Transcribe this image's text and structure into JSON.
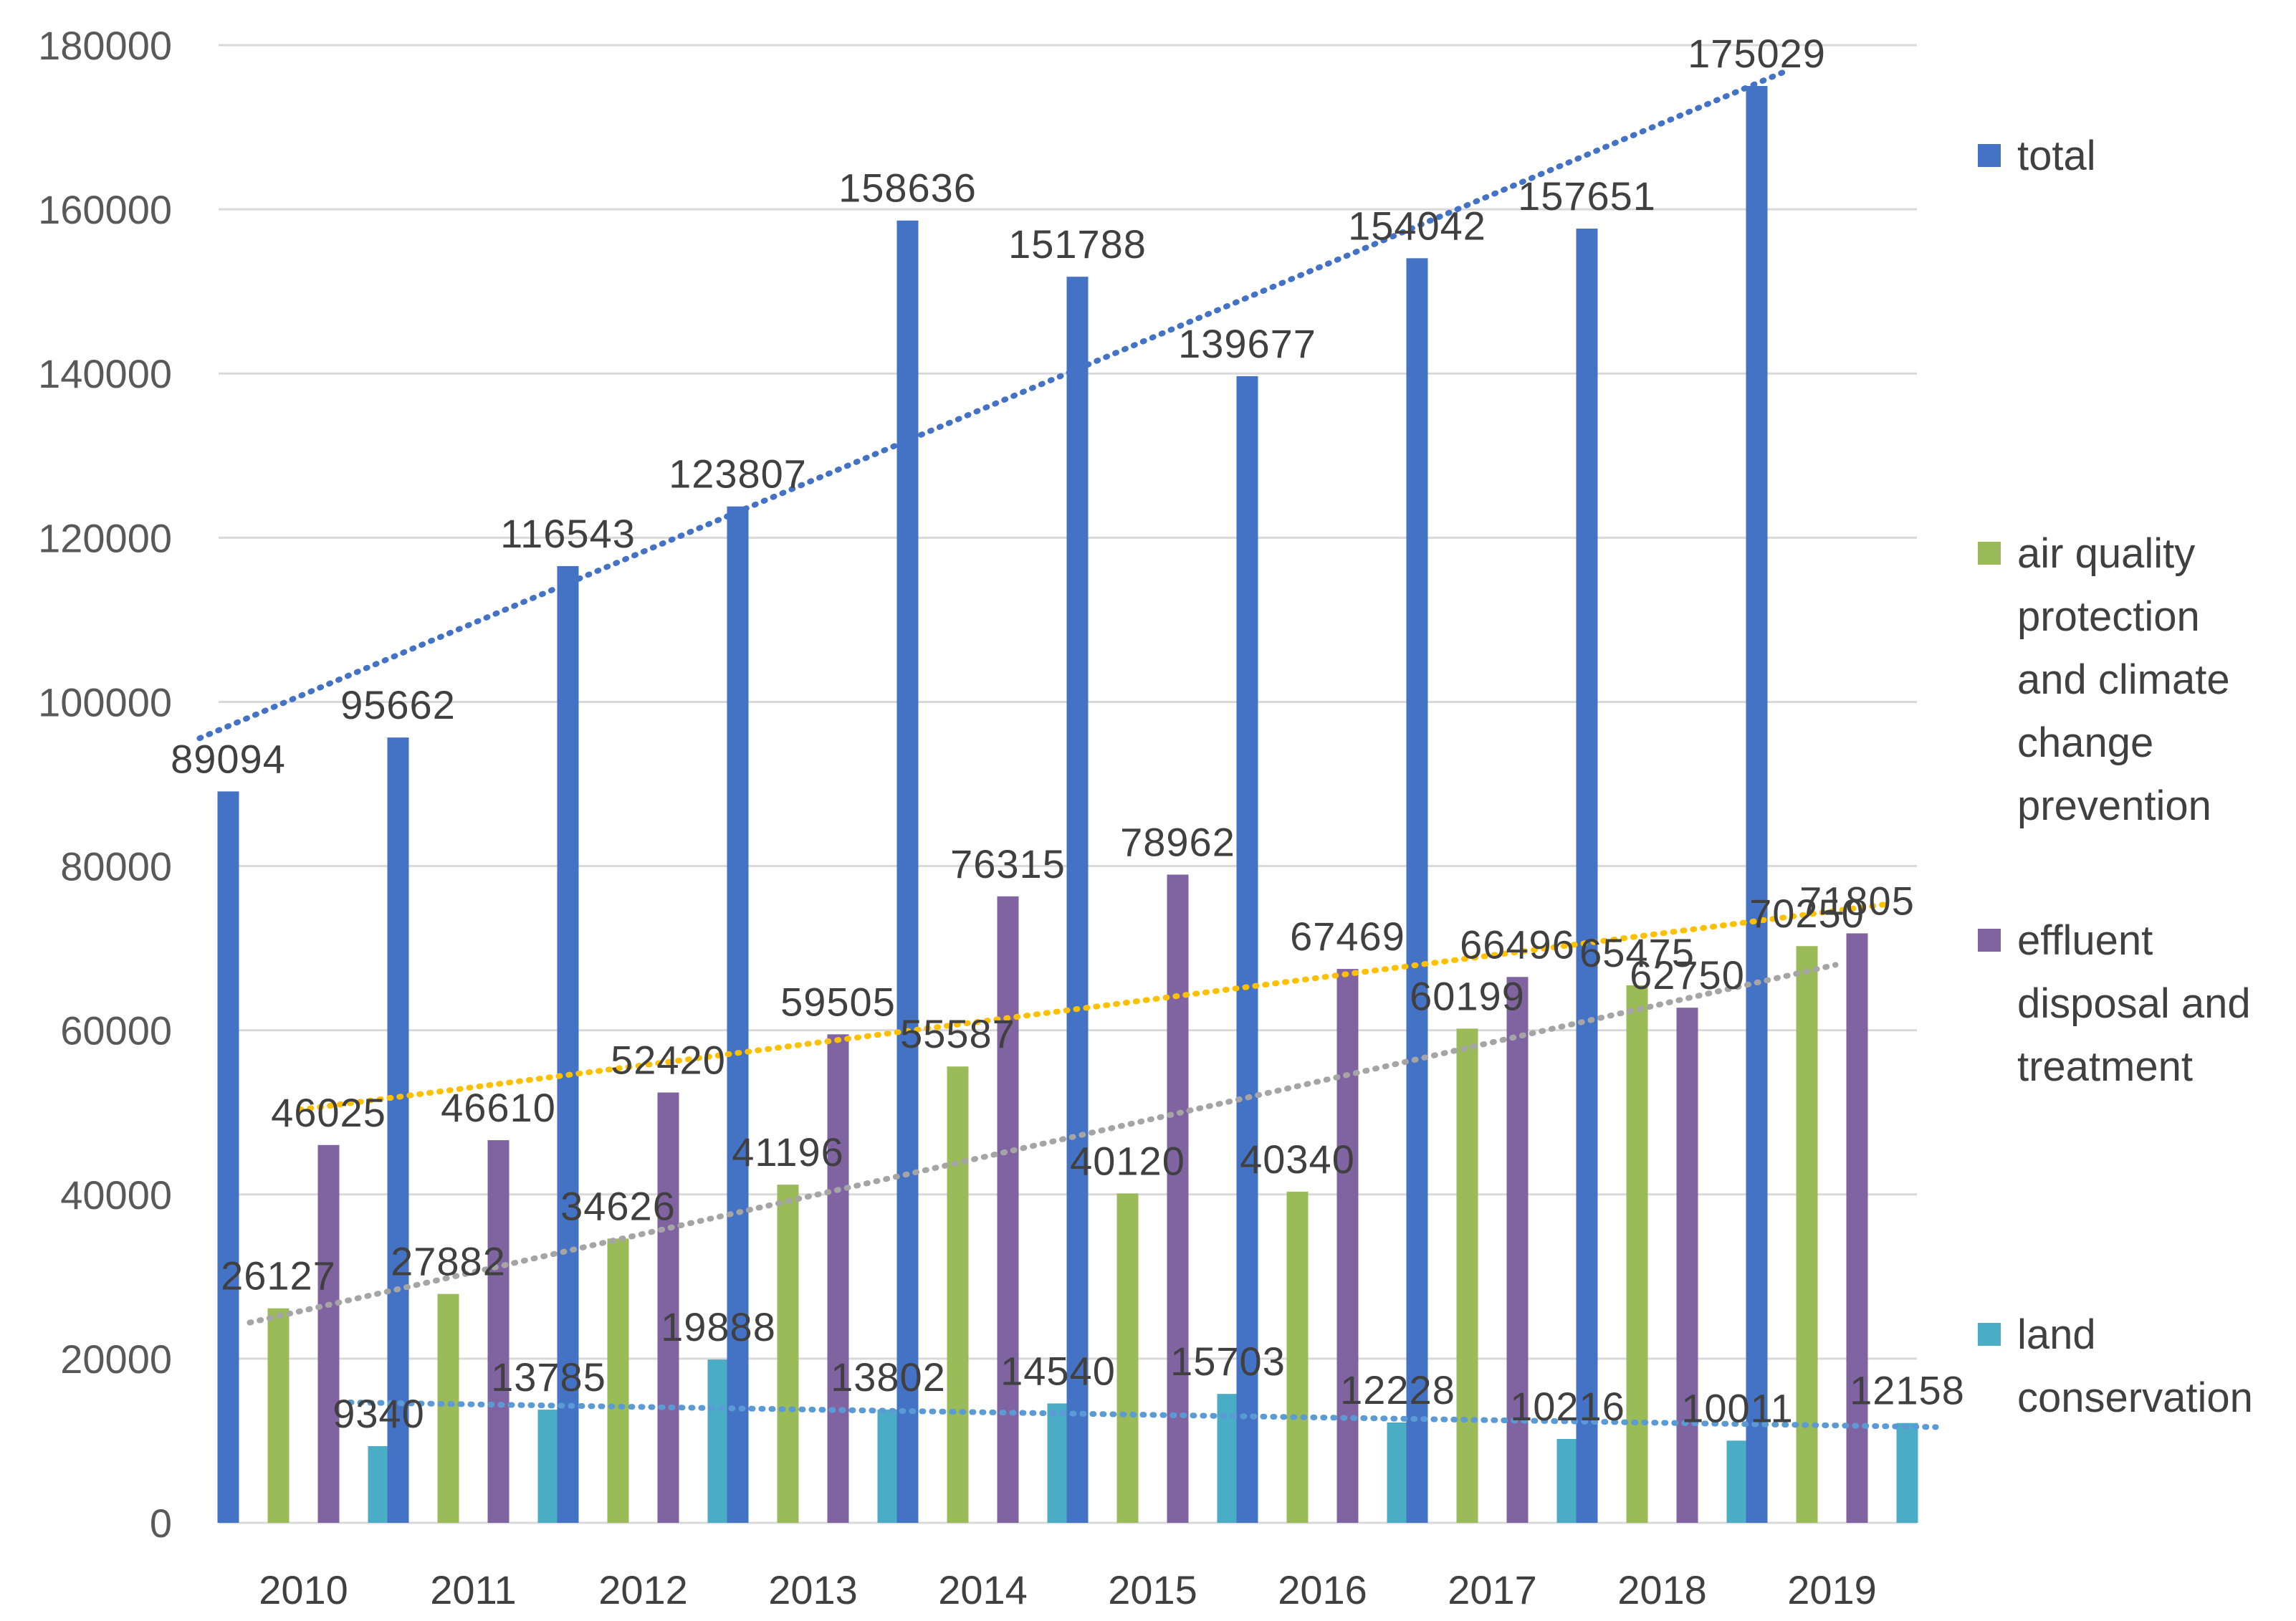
{
  "chart_data": {
    "type": "bar",
    "title": "",
    "xlabel": "",
    "ylabel": "",
    "ylim": [
      0,
      180000
    ],
    "ytick_step": 20000,
    "grid": true,
    "legend_position": "right",
    "categories": [
      "2010",
      "2011",
      "2012",
      "2013",
      "2014",
      "2015",
      "2016",
      "2017",
      "2018",
      "2019"
    ],
    "series": [
      {
        "name": "total",
        "color": "#4472C4",
        "values": [
          89094,
          95662,
          116543,
          123807,
          158636,
          151788,
          139677,
          154042,
          157651,
          175029
        ],
        "trendline_color": "#4472C4"
      },
      {
        "name": "air quality protection and climate change prevention",
        "legend_lines": [
          "air quality",
          "protection",
          "and climate",
          "change",
          "prevention"
        ],
        "color": "#9BBB59",
        "values": [
          26127,
          27882,
          34626,
          41196,
          55587,
          40120,
          40340,
          60199,
          65475,
          70250
        ],
        "trendline_color": "#A5A5A5"
      },
      {
        "name": "effluent disposal and treatment",
        "legend_lines": [
          "effluent",
          "disposal and",
          "treatment"
        ],
        "color": "#8064A2",
        "values": [
          46025,
          46610,
          52420,
          59505,
          76315,
          78962,
          67469,
          66496,
          62750,
          71805
        ],
        "trendline_color": "#FFC000"
      },
      {
        "name": "land conservation",
        "legend_lines": [
          "land",
          "conservation"
        ],
        "color": "#4BACC6",
        "values": [
          9340,
          13785,
          19888,
          13802,
          14540,
          15703,
          12228,
          10216,
          10011,
          12158
        ],
        "trendline_color": "#5B9BD5"
      }
    ]
  }
}
